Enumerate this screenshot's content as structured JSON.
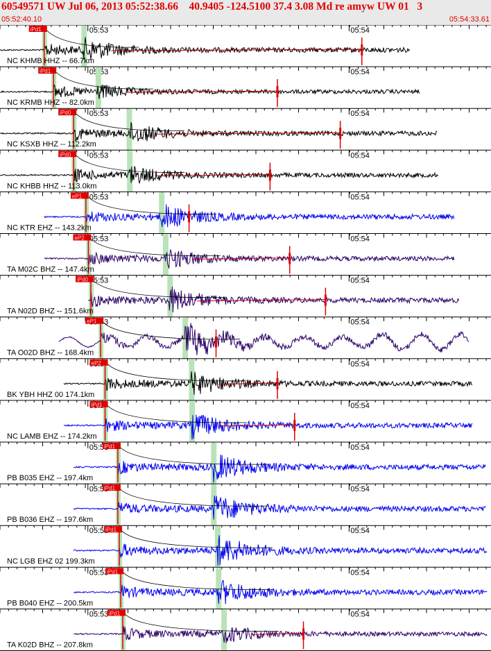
{
  "header": {
    "title": "60549571 UW Jul 06, 2013 05:52:38.66    40.9405 -124.5100 37.4 3.08 Md re amyw UW 01   3",
    "time_start": "05:52:40.10",
    "time_end": "05:54:33.61"
  },
  "time_marks": {
    "first": "05:53",
    "second": "05:54"
  },
  "colors": {
    "pick": "#e00000",
    "trace_black": "#000000",
    "trace_blue": "#0000ee",
    "trace_purple": "#2a0066",
    "window": "#b9e3b9",
    "coda": "#c00000"
  },
  "traces": [
    {
      "label": "NC KHMB HHZ -- 66.7km",
      "pick_label": "iPd1",
      "color": "black",
      "pick": 0.09,
      "s": 0.17,
      "amp": 0.5,
      "start": 0.0,
      "end": 0.835,
      "spike": 0.737,
      "smooth": false
    },
    {
      "label": "NC KRMB HHZ -- 82.0km",
      "pick_label": "iPd1",
      "color": "black",
      "pick": 0.109,
      "s": 0.199,
      "amp": 0.3,
      "start": 0.0,
      "end": 0.855,
      "spike": 0.565,
      "smooth": false
    },
    {
      "label": "NC KSXB HHZ -- 112.2km",
      "pick_label": "iPd0",
      "color": "black",
      "pick": 0.15,
      "s": 0.262,
      "amp": 0.45,
      "start": 0.0,
      "end": 0.89,
      "spike": 0.693,
      "smooth": false
    },
    {
      "label": "NC KHBB HHZ -- 113.0km",
      "pick_label": "iPd0",
      "color": "black",
      "pick": 0.15,
      "s": 0.263,
      "amp": 0.4,
      "start": 0.0,
      "end": 0.893,
      "spike": 0.55,
      "smooth": false
    },
    {
      "label": "NC KTR EHZ -- 143.2km",
      "pick_label": "eP1",
      "color": "blue",
      "pick": 0.175,
      "s": 0.328,
      "amp": 0.55,
      "start": 0.09,
      "end": 0.925,
      "spike": 0.385,
      "smooth": false
    },
    {
      "label": "TA M02C BHZ -- 147.4km",
      "pick_label": "eP2",
      "color": "purple",
      "pick": 0.18,
      "s": 0.336,
      "amp": 0.45,
      "start": 0.09,
      "end": 0.925,
      "spike": 0.59,
      "smooth": false
    },
    {
      "label": "TA N02D BHZ -- 151.6km",
      "pick_label": "iPd0",
      "color": "purple",
      "pick": 0.185,
      "s": 0.345,
      "amp": 0.55,
      "start": 0.18,
      "end": 0.935,
      "spike": 0.663,
      "smooth": false
    },
    {
      "label": "TA O02D BHZ -- 168.4km",
      "pick_label": "eP1",
      "color": "purple",
      "pick": 0.205,
      "s": 0.376,
      "amp": 0.9,
      "start": 0.12,
      "end": 0.955,
      "spike": 0.44,
      "smooth": true
    },
    {
      "label": "BK YBH HHZ 00 174.1km",
      "pick_label": "eP2",
      "color": "black",
      "pick": 0.214,
      "s": 0.389,
      "amp": 0.5,
      "start": 0.13,
      "end": 0.962,
      "spike": 0.565,
      "smooth": false
    },
    {
      "label": "NC LAMB EHZ -- 174.2km",
      "pick_label": "iPd1",
      "color": "blue",
      "pick": 0.214,
      "s": 0.39,
      "amp": 0.55,
      "start": 0.13,
      "end": 0.962,
      "spike": 0.6,
      "smooth": false
    },
    {
      "label": "PB B035 EHZ -- 197.4km",
      "pick_label": "iPd1",
      "color": "blue",
      "pick": 0.24,
      "s": 0.434,
      "amp": 0.6,
      "start": 0.15,
      "end": 0.99,
      "spike": null,
      "smooth": false
    },
    {
      "label": "PB B036 EHZ -- 197.6km",
      "pick_label": "iPd1",
      "color": "blue",
      "pick": 0.24,
      "s": 0.434,
      "amp": 0.6,
      "start": 0.15,
      "end": 0.99,
      "spike": null,
      "smooth": false
    },
    {
      "label": "NC LGB EHZ 02 199.3km",
      "pick_label": "iPd1",
      "color": "blue",
      "pick": 0.243,
      "s": 0.442,
      "amp": 0.65,
      "start": 0.15,
      "end": 0.992,
      "spike": null,
      "smooth": false
    },
    {
      "label": "PB B040 EHZ -- 200.5km",
      "pick_label": "iPd1",
      "color": "blue",
      "pick": 0.246,
      "s": 0.444,
      "amp": 0.55,
      "start": 0.15,
      "end": 0.992,
      "spike": null,
      "smooth": false
    },
    {
      "label": "TA K02D BHZ -- 207.8km",
      "pick_label": "iPd1",
      "color": "purple",
      "pick": 0.25,
      "s": 0.455,
      "amp": 0.35,
      "start": 0.15,
      "end": 0.992,
      "spike": 0.618,
      "smooth": false
    }
  ]
}
